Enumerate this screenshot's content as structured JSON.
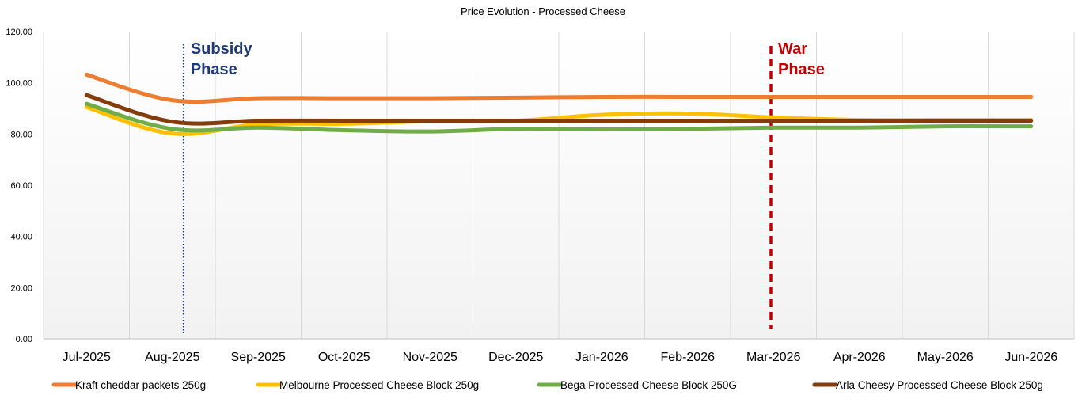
{
  "chart_data": {
    "type": "line",
    "title": "Price Evolution - Processed Cheese",
    "xlabel": "",
    "ylabel": "",
    "ylim": [
      0,
      120
    ],
    "yticks": [
      "0.00",
      "20.00",
      "40.00",
      "60.00",
      "80.00",
      "100.00",
      "120.00"
    ],
    "categories": [
      "Jul-2025",
      "Aug-2025",
      "Sep-2025",
      "Oct-2025",
      "Nov-2025",
      "Dec-2025",
      "Jan-2026",
      "Feb-2026",
      "Mar-2026",
      "Apr-2026",
      "May-2026",
      "Jun-2026"
    ],
    "grid": "vertical",
    "legend_position": "bottom",
    "series": [
      {
        "name": "Kraft cheddar packets 250g",
        "color": "#ED7D31",
        "values": [
          103.2,
          93.2,
          94.0,
          94.0,
          94.0,
          94.2,
          94.5,
          94.5,
          94.5,
          94.5,
          94.5,
          94.5
        ]
      },
      {
        "name": "Melbourne Processed Cheese Block 250g",
        "color": "#FFC000",
        "values": [
          90.5,
          80.2,
          83.8,
          84.0,
          85.0,
          85.2,
          87.5,
          88.0,
          86.5,
          85.5,
          85.5,
          85.5
        ]
      },
      {
        "name": "Bega Processed Cheese Block 250G",
        "color": "#70AD47",
        "values": [
          91.8,
          82.0,
          82.5,
          81.5,
          81.0,
          82.0,
          81.8,
          82.0,
          82.5,
          82.5,
          83.0,
          83.0
        ]
      },
      {
        "name": "Arla Cheesy Processed Cheese Block 250g",
        "color": "#843C0C",
        "values": [
          95.2,
          84.8,
          85.2,
          85.2,
          85.2,
          85.2,
          85.2,
          85.2,
          85.2,
          85.2,
          85.2,
          85.2
        ]
      }
    ],
    "annotations": [
      {
        "label_line1": "Subsidy",
        "label_line2": "Phase",
        "color": "#1F3A73",
        "style": "dotted",
        "position_between": [
          "Jul-2025",
          "Aug-2025"
        ],
        "fraction": 1.13
      },
      {
        "label_line1": "War",
        "label_line2": "Phase",
        "color": "#C00000",
        "style": "dashed",
        "position_between": [
          "Feb-2026",
          "Mar-2026"
        ],
        "fraction": 0.97
      }
    ]
  }
}
